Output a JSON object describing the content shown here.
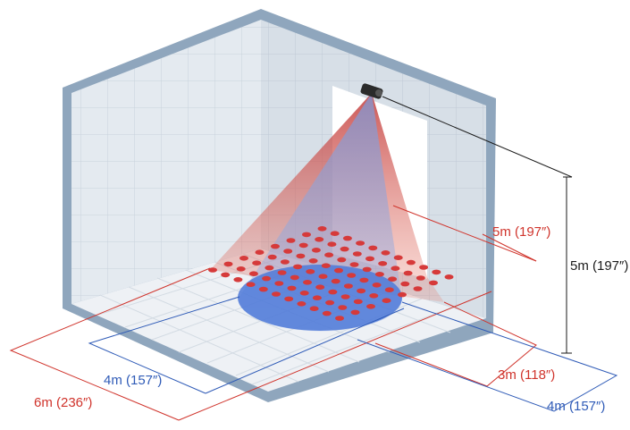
{
  "diagram": {
    "labels": {
      "sensor_height": "5m (197″)",
      "red_far_depth": "5m (197″)",
      "red_width": "6m (236″)",
      "red_near_depth": "3m (118″)",
      "blue_width": "4m (157″)",
      "blue_depth": "4m (157″)"
    },
    "colors": {
      "red_zone": "#d63a3a",
      "blue_zone": "#4d79d8",
      "room_frame": "#8fa6bd",
      "wall_fill": "#e3e9ef",
      "floor_fill": "#eef1f5",
      "dimension_red": "#d0342c",
      "dimension_blue": "#2f5bb7",
      "dimension_black": "#1a1a1a"
    },
    "icon": "ceiling-sensor-icon"
  }
}
